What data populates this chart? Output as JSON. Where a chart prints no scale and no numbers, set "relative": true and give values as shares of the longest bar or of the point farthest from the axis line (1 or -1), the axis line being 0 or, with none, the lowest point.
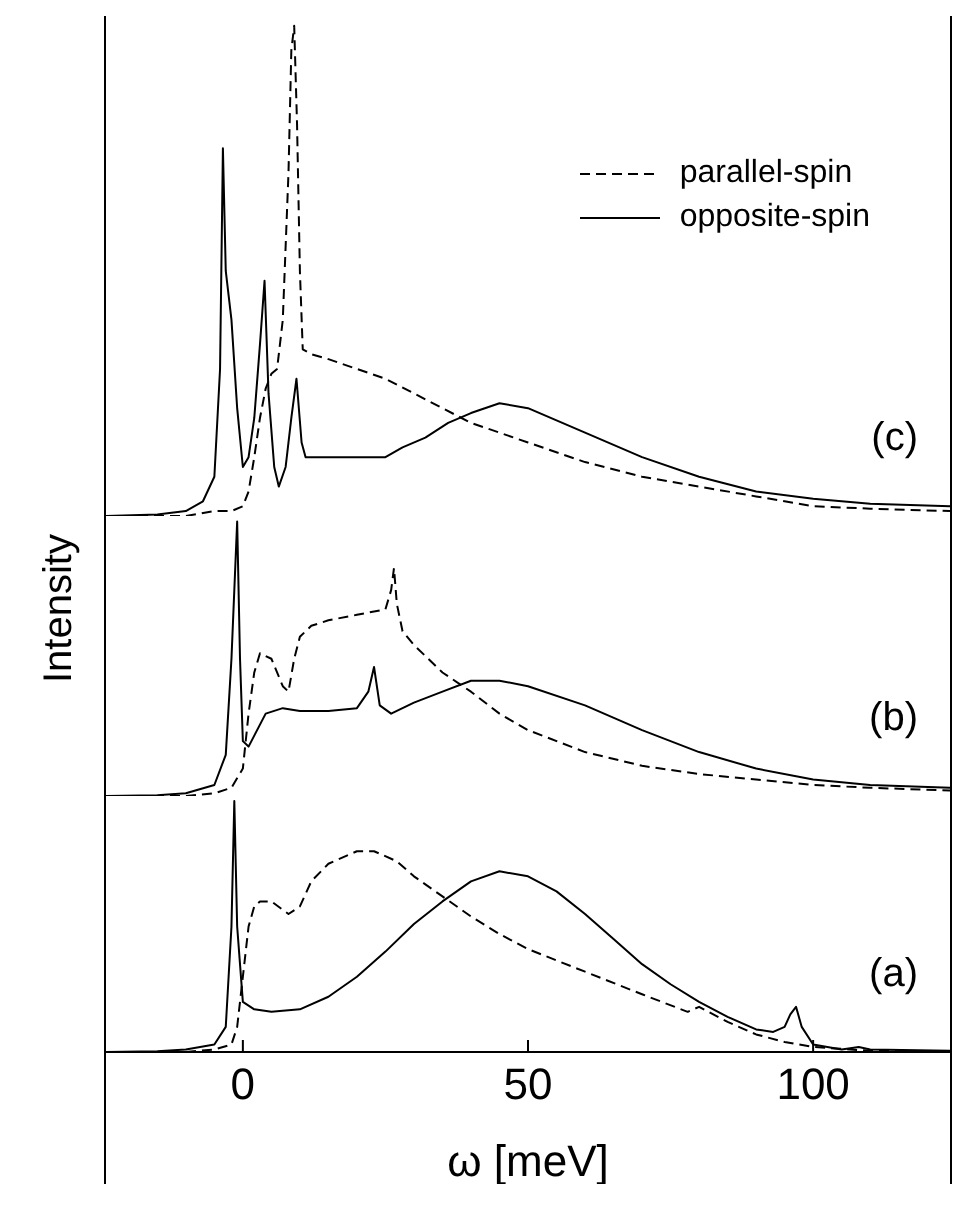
{
  "chart_data": [
    {
      "type": "line",
      "relative": true,
      "xlim": [
        -24,
        124
      ],
      "tick_labels": false,
      "legend": "top right",
      "annotations": [
        "(c)"
      ],
      "series": [
        {
          "name": "parallel-spin",
          "color": "#000000",
          "line_style": "dashed",
          "x": [
            -24,
            -10,
            -5,
            -2,
            0,
            1,
            2,
            3,
            4,
            5,
            6,
            7,
            8,
            8.5,
            9,
            9.5,
            10,
            10.5,
            12,
            15,
            20,
            25,
            30,
            35,
            40,
            45,
            50,
            60,
            70,
            80,
            90,
            100,
            110,
            124
          ],
          "values": [
            0,
            0,
            0.01,
            0.01,
            0.02,
            0.05,
            0.12,
            0.2,
            0.26,
            0.29,
            0.3,
            0.4,
            0.7,
            0.95,
            1,
            0.8,
            0.5,
            0.34,
            0.33,
            0.32,
            0.3,
            0.28,
            0.25,
            0.22,
            0.19,
            0.17,
            0.15,
            0.11,
            0.08,
            0.06,
            0.04,
            0.02,
            0.015,
            0.01
          ]
        },
        {
          "name": "opposite-spin",
          "color": "#000000",
          "line_style": "solid",
          "x": [
            -24,
            -15,
            -10,
            -7,
            -5,
            -4,
            -3.5,
            -3,
            -2,
            -1,
            0,
            1,
            2,
            3,
            3.8,
            4.5,
            5.5,
            6.3,
            7.5,
            8.5,
            9.4,
            10.3,
            11,
            12,
            15,
            20,
            25,
            28,
            32,
            36,
            40,
            45,
            50,
            60,
            70,
            80,
            90,
            100,
            110,
            124
          ],
          "values": [
            0,
            0.003,
            0.01,
            0.03,
            0.08,
            0.3,
            0.75,
            0.5,
            0.4,
            0.22,
            0.1,
            0.12,
            0.2,
            0.35,
            0.48,
            0.25,
            0.1,
            0.06,
            0.1,
            0.2,
            0.28,
            0.15,
            0.12,
            0.12,
            0.12,
            0.12,
            0.12,
            0.14,
            0.16,
            0.19,
            0.21,
            0.23,
            0.22,
            0.17,
            0.12,
            0.08,
            0.05,
            0.035,
            0.025,
            0.02
          ]
        }
      ]
    },
    {
      "type": "line",
      "relative": true,
      "xlim": [
        -24,
        124
      ],
      "tick_labels": false,
      "ylabel": "Intensity",
      "annotations": [
        "(b)"
      ],
      "series": [
        {
          "color": "#000000",
          "line_style": "dashed",
          "x": [
            -24,
            -10,
            -5,
            -2,
            0,
            1,
            2,
            3,
            5,
            7,
            8,
            9,
            10,
            12,
            15,
            20,
            25,
            26,
            26.5,
            27,
            28,
            30,
            35,
            40,
            45,
            50,
            60,
            70,
            80,
            90,
            100,
            110,
            124
          ],
          "values": [
            0,
            0,
            0.01,
            0.03,
            0.1,
            0.3,
            0.45,
            0.52,
            0.5,
            0.4,
            0.38,
            0.5,
            0.58,
            0.62,
            0.64,
            0.66,
            0.68,
            0.75,
            0.83,
            0.7,
            0.6,
            0.55,
            0.45,
            0.38,
            0.3,
            0.24,
            0.16,
            0.11,
            0.08,
            0.06,
            0.04,
            0.03,
            0.02
          ]
        },
        {
          "color": "#000000",
          "line_style": "solid",
          "x": [
            -24,
            -15,
            -10,
            -5,
            -3,
            -2,
            -1,
            -0.5,
            0,
            1,
            2,
            4,
            7,
            10,
            15,
            20,
            22,
            23,
            24,
            26,
            30,
            35,
            40,
            45,
            50,
            60,
            70,
            80,
            90,
            100,
            110,
            124
          ],
          "values": [
            0,
            0.003,
            0.01,
            0.04,
            0.15,
            0.5,
            1,
            0.5,
            0.2,
            0.18,
            0.22,
            0.3,
            0.32,
            0.31,
            0.31,
            0.32,
            0.38,
            0.47,
            0.33,
            0.3,
            0.34,
            0.38,
            0.42,
            0.42,
            0.4,
            0.33,
            0.24,
            0.16,
            0.1,
            0.06,
            0.04,
            0.03
          ]
        }
      ]
    },
    {
      "type": "line",
      "relative": true,
      "xlim": [
        -24,
        124
      ],
      "xticks": [
        0,
        50,
        100
      ],
      "tick_labels": "x",
      "xlabel": "ω [meV]",
      "annotations": [
        "(a)"
      ],
      "series": [
        {
          "color": "#000000",
          "line_style": "dashed",
          "x": [
            -24,
            -10,
            -5,
            -2,
            -1,
            0,
            1,
            2,
            3,
            5,
            8,
            10,
            12,
            15,
            20,
            23,
            27,
            30,
            35,
            40,
            45,
            50,
            60,
            70,
            78,
            80,
            85,
            90,
            95,
            100,
            110,
            124
          ],
          "values": [
            0,
            0,
            0.01,
            0.03,
            0.1,
            0.3,
            0.5,
            0.58,
            0.6,
            0.6,
            0.55,
            0.58,
            0.68,
            0.75,
            0.8,
            0.8,
            0.76,
            0.7,
            0.62,
            0.54,
            0.47,
            0.41,
            0.32,
            0.23,
            0.16,
            0.18,
            0.12,
            0.07,
            0.04,
            0.02,
            0.005,
            0
          ]
        },
        {
          "color": "#000000",
          "line_style": "solid",
          "x": [
            -24,
            -15,
            -10,
            -5,
            -3,
            -2,
            -1.5,
            -1,
            0,
            2,
            5,
            10,
            15,
            20,
            25,
            30,
            35,
            40,
            45,
            50,
            55,
            60,
            65,
            70,
            75,
            80,
            85,
            90,
            93,
            95,
            96,
            97,
            98,
            100,
            105,
            108,
            110,
            124
          ],
          "values": [
            0,
            0.003,
            0.01,
            0.03,
            0.1,
            0.5,
            1,
            0.5,
            0.2,
            0.17,
            0.16,
            0.17,
            0.22,
            0.3,
            0.4,
            0.51,
            0.6,
            0.68,
            0.72,
            0.7,
            0.64,
            0.55,
            0.45,
            0.35,
            0.27,
            0.2,
            0.14,
            0.09,
            0.08,
            0.1,
            0.15,
            0.18,
            0.1,
            0.03,
            0.01,
            0.02,
            0.01,
            0.005
          ]
        }
      ]
    }
  ]
}
